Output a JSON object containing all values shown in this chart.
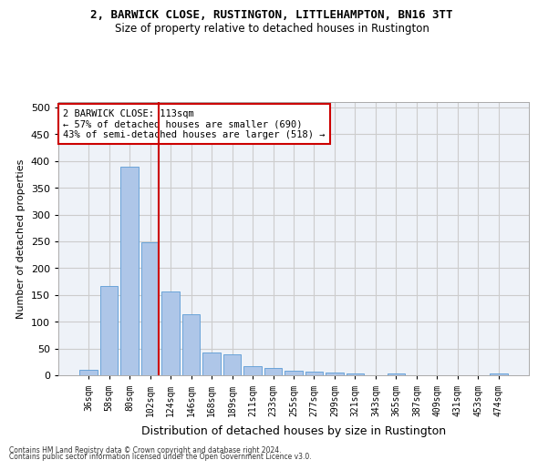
{
  "title1": "2, BARWICK CLOSE, RUSTINGTON, LITTLEHAMPTON, BN16 3TT",
  "title2": "Size of property relative to detached houses in Rustington",
  "xlabel": "Distribution of detached houses by size in Rustington",
  "ylabel": "Number of detached properties",
  "categories": [
    "36sqm",
    "58sqm",
    "80sqm",
    "102sqm",
    "124sqm",
    "146sqm",
    "168sqm",
    "189sqm",
    "211sqm",
    "233sqm",
    "255sqm",
    "277sqm",
    "299sqm",
    "321sqm",
    "343sqm",
    "365sqm",
    "387sqm",
    "409sqm",
    "431sqm",
    "453sqm",
    "474sqm"
  ],
  "values": [
    11,
    167,
    390,
    248,
    156,
    114,
    42,
    39,
    17,
    14,
    9,
    7,
    5,
    3,
    0,
    3,
    0,
    0,
    0,
    0,
    4
  ],
  "bar_color": "#aec6e8",
  "bar_edge_color": "#5b9bd5",
  "vline_x": 3.0,
  "vline_color": "#cc0000",
  "annotation_text": "2 BARWICK CLOSE: 113sqm\n← 57% of detached houses are smaller (690)\n43% of semi-detached houses are larger (518) →",
  "annotation_box_color": "#ffffff",
  "annotation_box_edge": "#cc0000",
  "ylim": [
    0,
    510
  ],
  "yticks": [
    0,
    50,
    100,
    150,
    200,
    250,
    300,
    350,
    400,
    450,
    500
  ],
  "grid_color": "#cccccc",
  "bg_color": "#eef2f8",
  "footer1": "Contains HM Land Registry data © Crown copyright and database right 2024.",
  "footer2": "Contains public sector information licensed under the Open Government Licence v3.0."
}
